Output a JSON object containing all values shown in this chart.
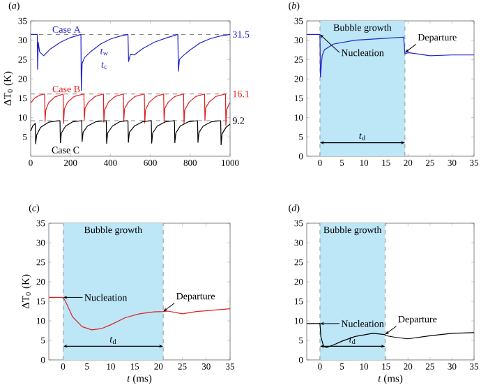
{
  "chart_data": [
    {
      "type": "line",
      "title": "(*a*)",
      "ylabel": "ΔT$_{0}$ (K)",
      "xlim": [
        0,
        1000
      ],
      "ylim": [
        0,
        35
      ],
      "xticks": [
        0,
        200,
        400,
        600,
        800,
        1000
      ],
      "yticks": [
        5,
        10,
        15,
        20,
        25,
        30,
        35
      ],
      "series": [
        {
          "name": "Case A",
          "color": "#2222cc",
          "x": [
            0,
            33,
            35,
            38,
            45,
            65,
            100,
            150,
            200,
            252,
            254,
            258,
            270,
            300,
            350,
            400,
            450,
            488,
            491,
            500,
            520,
            560,
            620,
            680,
            738,
            741,
            746,
            765,
            800,
            850,
            900,
            950,
            1000
          ],
          "values": [
            31.5,
            31.5,
            22.5,
            29.5,
            27,
            26,
            27.8,
            29.5,
            30.7,
            31.5,
            17,
            24,
            25.5,
            27,
            29,
            30.3,
            31.1,
            31.5,
            24.5,
            26.3,
            26.2,
            27.8,
            29.5,
            30.6,
            31.5,
            22,
            25,
            26,
            27.5,
            29.3,
            30.4,
            31.1,
            31.5
          ]
        },
        {
          "name": "Case B",
          "color": "#e02020",
          "x": [
            0,
            20,
            45,
            70,
            72,
            76,
            90,
            120,
            163,
            165,
            169,
            185,
            220,
            267,
            269,
            273,
            290,
            325,
            365,
            367,
            371,
            390,
            425,
            465,
            467,
            471,
            490,
            525,
            570,
            572,
            576,
            595,
            630,
            667,
            669,
            673,
            690,
            725,
            767,
            769,
            773,
            795,
            830,
            872,
            874,
            878,
            895,
            930,
            977,
            979,
            983,
            995,
            1000
          ],
          "values": [
            13.8,
            15,
            15.8,
            16.1,
            9,
            12,
            13.8,
            15.3,
            16.1,
            8.5,
            12.2,
            14,
            15.5,
            16.1,
            9.5,
            12.5,
            14,
            15.5,
            16.1,
            8.8,
            12,
            14,
            15.5,
            16.1,
            9.2,
            12.3,
            14,
            15.5,
            16.1,
            8.6,
            12,
            14,
            15.5,
            16.1,
            9,
            12.4,
            14,
            15.5,
            16.1,
            8.5,
            12,
            14,
            15.5,
            16.1,
            9.3,
            12.5,
            14,
            15.5,
            16.1,
            8,
            12,
            13.5,
            13.8
          ]
        },
        {
          "name": "Case C",
          "color": "#000000",
          "x": [
            0,
            10,
            23,
            25,
            30,
            50,
            90,
            147,
            149,
            154,
            175,
            210,
            256,
            258,
            263,
            285,
            325,
            379,
            381,
            386,
            410,
            445,
            488,
            490,
            495,
            520,
            560,
            605,
            607,
            612,
            635,
            675,
            721,
            723,
            728,
            750,
            790,
            837,
            839,
            844,
            865,
            905,
            953,
            955,
            960,
            980,
            1000
          ],
          "values": [
            6.5,
            7.8,
            8.5,
            3.2,
            5.5,
            7.5,
            8.8,
            9.2,
            3.5,
            6,
            7.8,
            8.9,
            9.2,
            3.8,
            6.2,
            7.8,
            8.9,
            9.2,
            3.3,
            6,
            7.8,
            8.9,
            9.2,
            3.6,
            6.2,
            7.8,
            8.9,
            9.2,
            3.4,
            6,
            7.8,
            8.9,
            9.2,
            3.5,
            6,
            7.8,
            8.9,
            9.2,
            3.6,
            6.1,
            7.8,
            8.9,
            9.2,
            3,
            5.8,
            7.5,
            8.3
          ]
        }
      ],
      "ref_lines": [
        {
          "axis": "y",
          "value": 31.5,
          "label": "31.5",
          "color": "#888888",
          "line_style": "dashed"
        },
        {
          "axis": "y",
          "value": 16.1,
          "label": "16.1",
          "color": "#888888",
          "line_style": "dashed"
        },
        {
          "axis": "y",
          "value": 9.2,
          "label": "9.2",
          "color": "#888888",
          "line_style": "dashed"
        }
      ],
      "annotations": [
        "*t*$_{w}$",
        "*t*$_{c}$"
      ]
    },
    {
      "type": "line",
      "title": "(*b*)",
      "xlim": [
        -3,
        35
      ],
      "ylim": [
        0,
        35
      ],
      "xticks": [
        0,
        5,
        10,
        15,
        20,
        25,
        30,
        35
      ],
      "yticks": [
        0,
        5,
        10,
        15,
        20,
        25,
        30,
        35
      ],
      "series": [
        {
          "color": "#2222cc",
          "x": [
            -3,
            0,
            0.1,
            0.5,
            1,
            3,
            8,
            15,
            19,
            19.3,
            20,
            25,
            30,
            35
          ],
          "values": [
            31.5,
            31.5,
            20.5,
            26,
            27.5,
            29,
            30,
            30.5,
            30.8,
            26.5,
            26.8,
            26,
            26.2,
            26.2
          ]
        }
      ],
      "bands": [
        {
          "axis": "x",
          "from": 0,
          "to": 19.3,
          "label": "Bubble growth",
          "color": "#bde6f7"
        }
      ],
      "annotations": [
        {
          "text": "Nucleation",
          "x": 0,
          "y": 31.5
        },
        {
          "text": "Departure",
          "x": 19.3,
          "y": 26.8
        },
        "*t*$_{d}$"
      ]
    },
    {
      "type": "line",
      "title": "(*c*)",
      "xlabel": "*t* (ms)",
      "ylabel": "ΔT$_{0}$ (K)",
      "xlim": [
        -3,
        35
      ],
      "ylim": [
        0,
        35
      ],
      "xticks": [
        0,
        5,
        10,
        15,
        20,
        25,
        30,
        35
      ],
      "yticks": [
        0,
        5,
        10,
        15,
        20,
        25,
        30,
        35
      ],
      "series": [
        {
          "color": "#e02020",
          "x": [
            -3,
            0,
            0.5,
            2,
            4,
            6,
            8,
            10,
            13,
            16,
            19,
            21,
            22,
            25,
            28,
            32,
            35
          ],
          "values": [
            16,
            16,
            15,
            11,
            8.5,
            7.7,
            8,
            9,
            10.8,
            11.8,
            12.3,
            12.4,
            12.5,
            11.8,
            12.4,
            12.8,
            13.1
          ]
        }
      ],
      "bands": [
        {
          "axis": "x",
          "from": 0,
          "to": 21,
          "label": "Bubble growth",
          "color": "#bde6f7"
        }
      ],
      "annotations": [
        {
          "text": "Nucleation",
          "x": 0,
          "y": 16
        },
        {
          "text": "Departure",
          "x": 21,
          "y": 12.4
        },
        "*t*$_{d}$"
      ]
    },
    {
      "type": "line",
      "title": "(*d*)",
      "xlabel": "*t* (ms)",
      "xlim": [
        -3,
        35
      ],
      "ylim": [
        0,
        35
      ],
      "xticks": [
        0,
        5,
        10,
        15,
        20,
        25,
        30,
        35
      ],
      "yticks": [
        0,
        5,
        10,
        15,
        20,
        25,
        30,
        35
      ],
      "series": [
        {
          "color": "#000000",
          "x": [
            -3,
            0,
            0.2,
            0.8,
            1.5,
            3,
            5,
            8,
            12,
            14.7,
            15,
            17,
            20,
            25,
            30,
            35
          ],
          "values": [
            9.3,
            9.3,
            6,
            3.5,
            3.2,
            3.8,
            4.8,
            6,
            6.8,
            6.5,
            6.2,
            5.8,
            5.4,
            6.2,
            6.8,
            7
          ]
        }
      ],
      "bands": [
        {
          "axis": "x",
          "from": 0,
          "to": 14.8,
          "label": "Bubble growth",
          "color": "#bde6f7"
        }
      ],
      "annotations": [
        {
          "text": "Nucleation",
          "x": 0,
          "y": 9.3
        },
        {
          "text": "Departure",
          "x": 14.8,
          "y": 6.5
        },
        "*t*$_{d}$"
      ]
    }
  ]
}
